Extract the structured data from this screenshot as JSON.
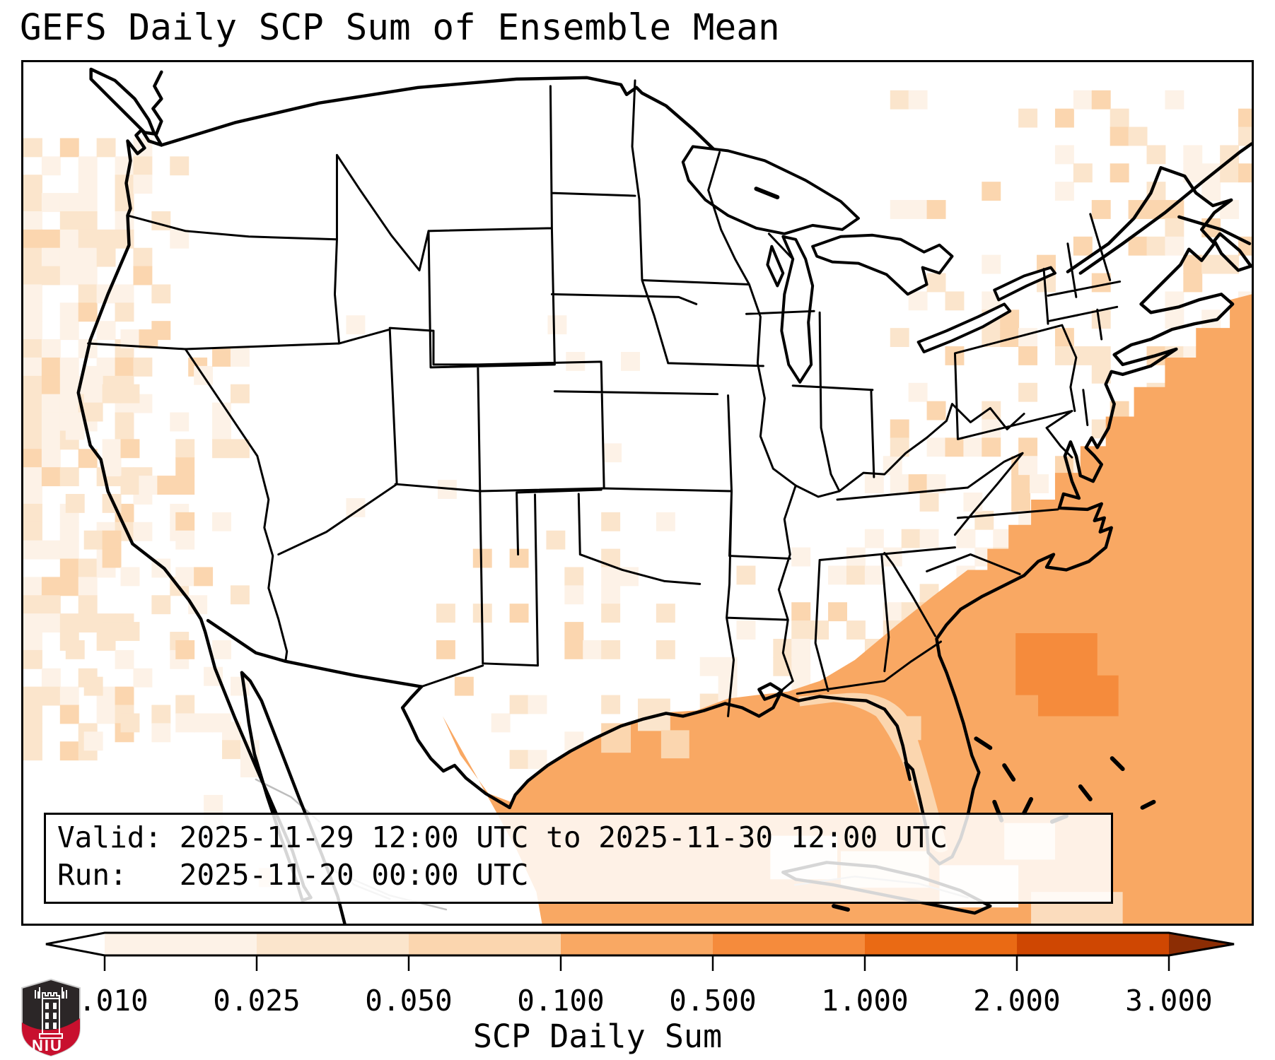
{
  "title": "GEFS Daily SCP Sum of Ensemble Mean",
  "annotation_box": {
    "line1": "Valid: 2025-11-29 12:00 UTC to 2025-11-30 12:00 UTC",
    "line2": "Run:   2025-11-20 00:00 UTC"
  },
  "colorbar": {
    "label": "SCP Daily Sum",
    "ticks": [
      "0.010",
      "0.025",
      "0.050",
      "0.100",
      "0.500",
      "1.000",
      "2.000",
      "3.000"
    ],
    "segment_colors": [
      "#fdf2e7",
      "#fbe5cc",
      "#fbd6af",
      "#f9a863",
      "#f58b3c",
      "#ea6a14",
      "#cf4702"
    ],
    "under_arrow_color": "#ffffff",
    "over_arrow_color": "#8c2d04",
    "outline_color": "#000000"
  },
  "logo": {
    "label": "NIU",
    "shield_dark": "#2b2627",
    "shield_red": "#c8102e"
  },
  "map": {
    "land_color": "#ffffff",
    "boundary_color": "#000000",
    "gulf_fill": "#f9a863",
    "florida_interior_fill": "#fbd6af",
    "atlantic_blob_fill": "#f58b3c"
  },
  "chart_data": {
    "type": "heatmap",
    "title": "GEFS Daily SCP Sum of Ensemble Mean",
    "colorbar_label": "SCP Daily Sum",
    "levels": [
      0.01,
      0.025,
      0.05,
      0.1,
      0.5,
      1.0,
      2.0,
      3.0
    ],
    "level_colors": [
      "#fdf2e7",
      "#fbe5cc",
      "#fbd6af",
      "#f9a863",
      "#f58b3c",
      "#ea6a14",
      "#cf4702"
    ],
    "extend": "both",
    "regions": [
      {
        "region": "Gulf of Mexico, Florida coastal waters and SE Atlantic",
        "value_range": "0.100-0.500"
      },
      {
        "region": "Atlantic patch east of Florida",
        "value_range": "0.500-1.000"
      },
      {
        "region": "Florida peninsula interior",
        "value_range": "0.050-0.100"
      },
      {
        "region": "Coastal plain GA / SC / AL / MS / LA",
        "value_range": "0.010-0.100"
      },
      {
        "region": "Pacific offshore of West Coast and California",
        "value_range": "0.010-0.050"
      },
      {
        "region": "Central Texas speckled area",
        "value_range": "0.010-0.100"
      },
      {
        "region": "Northeast Atlantic offshore gradient",
        "value_range": "0.010-0.100"
      },
      {
        "region": "Interior northern US and Great Lakes",
        "value_range": "< 0.010"
      }
    ]
  }
}
